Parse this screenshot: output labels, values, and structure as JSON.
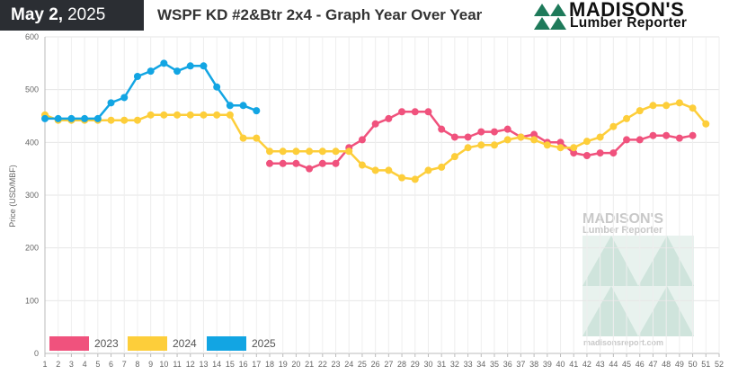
{
  "header": {
    "date_month_day": "May 2,",
    "date_year": "2025",
    "title": "WSPF KD #2&Btr 2x4 - Graph Year Over Year"
  },
  "logo": {
    "brand": "MADISON'S",
    "sub": "Lumber Reporter"
  },
  "watermark": {
    "brand": "MADISON'S",
    "sub": "Lumber Reporter",
    "url": "madisonsreport.com"
  },
  "colors": {
    "2023": "#f0527d",
    "2024": "#fdce3a",
    "2025": "#12a5e3",
    "logo_green": "#1e7a5a",
    "watermark_green": "#cfe4dc"
  },
  "chart_data": {
    "type": "line",
    "title": "WSPF KD #2&Btr 2x4 - Graph Year Over Year",
    "xlabel": "",
    "ylabel": "Price (USD/MBF)",
    "xlim": [
      1,
      52
    ],
    "ylim": [
      0,
      600
    ],
    "yticks": [
      0,
      100,
      200,
      300,
      400,
      500,
      600
    ],
    "xticks": [
      1,
      2,
      3,
      4,
      5,
      6,
      7,
      8,
      9,
      10,
      11,
      12,
      13,
      14,
      15,
      16,
      17,
      18,
      19,
      20,
      21,
      22,
      23,
      24,
      25,
      26,
      27,
      28,
      29,
      30,
      31,
      32,
      33,
      34,
      35,
      36,
      37,
      38,
      39,
      40,
      41,
      42,
      43,
      44,
      45,
      46,
      47,
      48,
      49,
      50,
      51,
      52
    ],
    "grid": true,
    "legend_position": "bottom-left",
    "series": [
      {
        "name": "2023",
        "color": "#f0527d",
        "x": [
          18,
          19,
          20,
          21,
          22,
          23,
          24,
          25,
          26,
          27,
          28,
          29,
          30,
          31,
          32,
          33,
          34,
          35,
          36,
          37,
          38,
          39,
          40,
          41,
          42,
          43,
          44,
          45,
          46,
          47,
          48,
          49,
          50
        ],
        "values": [
          360,
          360,
          360,
          350,
          360,
          360,
          390,
          405,
          435,
          445,
          458,
          458,
          458,
          425,
          410,
          410,
          420,
          420,
          425,
          410,
          415,
          400,
          400,
          380,
          375,
          380,
          380,
          405,
          405,
          413,
          413,
          408,
          413
        ]
      },
      {
        "name": "2024",
        "color": "#fdce3a",
        "x": [
          1,
          2,
          3,
          4,
          5,
          6,
          7,
          8,
          9,
          10,
          11,
          12,
          13,
          14,
          15,
          16,
          17,
          18,
          19,
          20,
          21,
          22,
          23,
          24,
          25,
          26,
          27,
          28,
          29,
          30,
          31,
          32,
          33,
          34,
          35,
          36,
          37,
          38,
          39,
          40,
          41,
          42,
          43,
          44,
          45,
          46,
          47,
          48,
          49,
          50,
          51
        ],
        "values": [
          452,
          442,
          442,
          442,
          442,
          442,
          442,
          442,
          452,
          452,
          452,
          452,
          452,
          452,
          452,
          408,
          408,
          383,
          383,
          383,
          383,
          383,
          383,
          383,
          357,
          347,
          347,
          333,
          330,
          347,
          353,
          373,
          390,
          395,
          395,
          405,
          410,
          405,
          395,
          390,
          390,
          402,
          410,
          430,
          445,
          460,
          470,
          470,
          475,
          465,
          435
        ]
      },
      {
        "name": "2025",
        "color": "#12a5e3",
        "x": [
          1,
          2,
          3,
          4,
          5,
          6,
          7,
          8,
          9,
          10,
          11,
          12,
          13,
          14,
          15,
          16,
          17
        ],
        "values": [
          445,
          445,
          445,
          445,
          445,
          475,
          485,
          525,
          535,
          550,
          535,
          545,
          545,
          505,
          470,
          470,
          460
        ]
      }
    ]
  }
}
